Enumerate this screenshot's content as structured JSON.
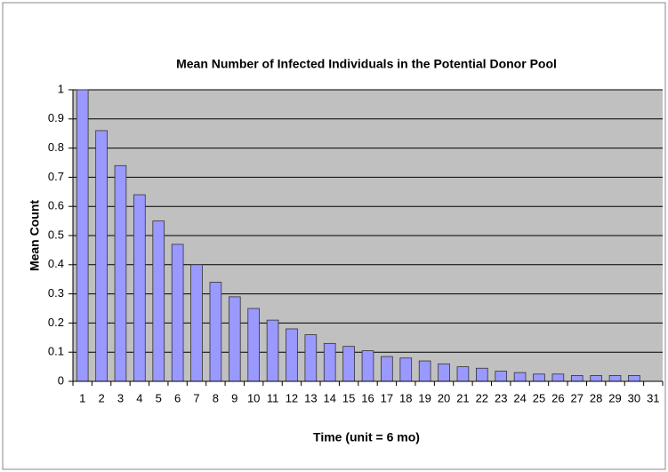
{
  "chart_data": {
    "type": "bar",
    "title": "Mean Number of Infected Individuals in the Potential Donor Pool",
    "x_label": "Time (unit = 6 mo)",
    "y_label": "Mean Count",
    "categories": [
      1,
      2,
      3,
      4,
      5,
      6,
      7,
      8,
      9,
      10,
      11,
      12,
      13,
      14,
      15,
      16,
      17,
      18,
      19,
      20,
      21,
      22,
      23,
      24,
      25,
      26,
      27,
      28,
      29,
      30,
      31
    ],
    "values": [
      1,
      0.86,
      0.74,
      0.64,
      0.55,
      0.47,
      0.4,
      0.34,
      0.29,
      0.25,
      0.21,
      0.18,
      0.16,
      0.13,
      0.12,
      0.105,
      0.085,
      0.08,
      0.07,
      0.06,
      0.05,
      0.045,
      0.035,
      0.03,
      0.025,
      0.025,
      0.02,
      0.02,
      0.02,
      0.02,
      null
    ],
    "color": "#9999ff",
    "ylim": [
      0,
      1
    ],
    "yticks": [
      0,
      0.1,
      0.2,
      0.3,
      0.4,
      0.5,
      0.6,
      0.7,
      0.8,
      0.9,
      1
    ],
    "grid": true
  }
}
